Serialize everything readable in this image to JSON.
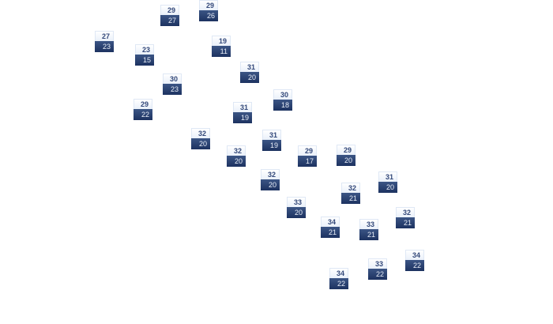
{
  "colors": {
    "high_bg": "#eef3fb",
    "low_bg": "#243a68",
    "high_text": "#34497a",
    "low_text": "#e8eef8"
  },
  "markers": [
    {
      "high": "29",
      "low": "27"
    },
    {
      "high": "29",
      "low": "26"
    },
    {
      "high": "27",
      "low": "23"
    },
    {
      "high": "23",
      "low": "15"
    },
    {
      "high": "19",
      "low": "11"
    },
    {
      "high": "31",
      "low": "20"
    },
    {
      "high": "30",
      "low": "23"
    },
    {
      "high": "30",
      "low": "18"
    },
    {
      "high": "29",
      "low": "22"
    },
    {
      "high": "31",
      "low": "19"
    },
    {
      "high": "32",
      "low": "20"
    },
    {
      "high": "31",
      "low": "19"
    },
    {
      "high": "32",
      "low": "20"
    },
    {
      "high": "29",
      "low": "17"
    },
    {
      "high": "29",
      "low": "20"
    },
    {
      "high": "32",
      "low": "20"
    },
    {
      "high": "31",
      "low": "20"
    },
    {
      "high": "32",
      "low": "21"
    },
    {
      "high": "33",
      "low": "20"
    },
    {
      "high": "32",
      "low": "21"
    },
    {
      "high": "34",
      "low": "21"
    },
    {
      "high": "33",
      "low": "21"
    },
    {
      "high": "34",
      "low": "22"
    },
    {
      "high": "33",
      "low": "22"
    },
    {
      "high": "34",
      "low": "22"
    }
  ]
}
